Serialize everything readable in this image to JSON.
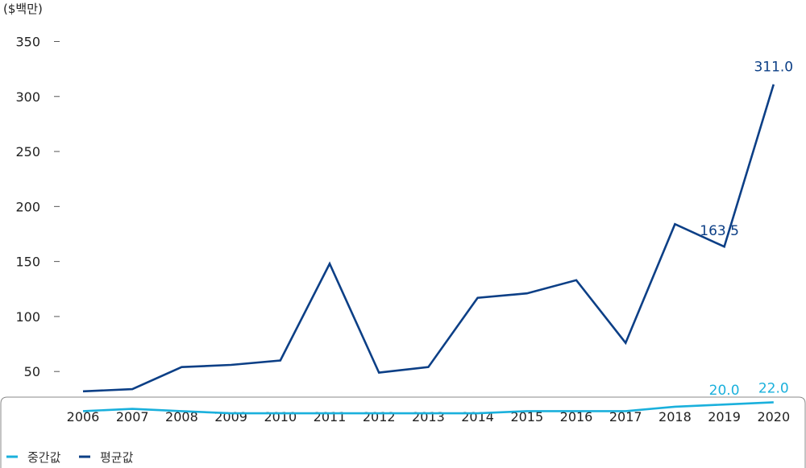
{
  "chart_data": {
    "type": "line",
    "unit_label": "($백만)",
    "categories": [
      "2006",
      "2007",
      "2008",
      "2009",
      "2010",
      "2011",
      "2012",
      "2013",
      "2014",
      "2015",
      "2016",
      "2017",
      "2018",
      "2019",
      "2020"
    ],
    "yticks": [
      "350",
      "300",
      "250",
      "200",
      "150",
      "100",
      "50"
    ],
    "ylim": [
      15,
      365
    ],
    "grid": false,
    "legend_position": "bottom-left",
    "series": [
      {
        "name": "중간값",
        "color": "#1ab0dc",
        "values": [
          14,
          16,
          14,
          12,
          12,
          12,
          12,
          12,
          12,
          14,
          14,
          14,
          18,
          20,
          22
        ],
        "annotations": [
          {
            "index": 13,
            "text": "20.0"
          },
          {
            "index": 14,
            "text": "22.0"
          }
        ]
      },
      {
        "name": "평균값",
        "color": "#0c3f86",
        "values": [
          32,
          34,
          54,
          56,
          60,
          148,
          49,
          54,
          117,
          121,
          133,
          76,
          184,
          163.5,
          311
        ],
        "annotations": [
          {
            "index": 13,
            "text": "163.5"
          },
          {
            "index": 14,
            "text": "311.0"
          }
        ]
      }
    ]
  }
}
